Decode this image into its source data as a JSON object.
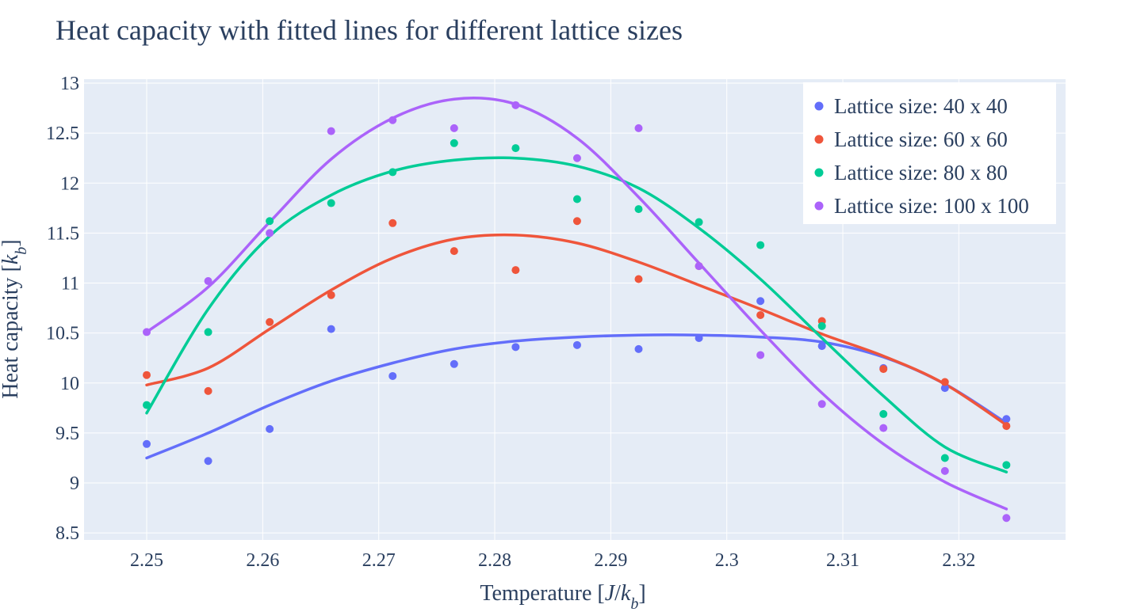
{
  "chart_data": {
    "type": "scatter",
    "title": "Heat capacity with fitted lines for different lattice sizes",
    "xlabel": "Temperature [J/k_b]",
    "ylabel": "Heat capacity [k_b]",
    "x_ticks": [
      "2.25",
      "2.26",
      "2.27",
      "2.28",
      "2.29",
      "2.3",
      "2.31",
      "2.32"
    ],
    "y_ticks": [
      "8.5",
      "9",
      "9.5",
      "10",
      "10.5",
      "11",
      "11.5",
      "12",
      "12.5",
      "13"
    ],
    "xlim": [
      2.2446,
      2.3292
    ],
    "ylim": [
      8.43,
      13.04
    ],
    "grid": true,
    "legend_position": "top-right",
    "x": [
      2.25,
      2.2553,
      2.2606,
      2.2659,
      2.2712,
      2.2765,
      2.2818,
      2.2871,
      2.2924,
      2.2976,
      2.3029,
      2.3082,
      2.3135,
      2.3188,
      2.3241
    ],
    "series": [
      {
        "name": "Lattice size: 40 x 40",
        "color": "#636efa",
        "values": [
          9.39,
          9.22,
          9.54,
          10.54,
          10.07,
          10.19,
          10.36,
          10.38,
          10.34,
          10.45,
          10.82,
          10.37,
          10.15,
          9.95,
          9.64
        ],
        "fit": [
          9.25,
          9.5,
          9.78,
          10.02,
          10.2,
          10.34,
          10.42,
          10.46,
          10.48,
          10.48,
          10.46,
          10.41,
          10.26,
          9.99,
          9.6
        ]
      },
      {
        "name": "Lattice size: 60 x 60",
        "color": "#ef553b",
        "values": [
          10.08,
          9.92,
          10.61,
          10.88,
          11.6,
          11.32,
          11.13,
          11.62,
          11.04,
          11.17,
          10.68,
          10.62,
          10.14,
          10.01,
          9.57
        ],
        "fit": [
          9.98,
          10.15,
          10.54,
          10.93,
          11.25,
          11.44,
          11.48,
          11.4,
          11.21,
          10.98,
          10.74,
          10.49,
          10.27,
          9.99,
          9.58
        ]
      },
      {
        "name": "Lattice size: 80 x 80",
        "color": "#00cc96",
        "values": [
          9.78,
          10.51,
          11.62,
          11.8,
          12.11,
          12.4,
          12.35,
          11.84,
          11.74,
          11.61,
          11.38,
          10.57,
          9.69,
          9.25,
          9.18
        ],
        "fit": [
          9.7,
          10.74,
          11.47,
          11.88,
          12.12,
          12.23,
          12.25,
          12.17,
          11.95,
          11.55,
          11.04,
          10.45,
          9.87,
          9.36,
          9.11
        ]
      },
      {
        "name": "Lattice size: 100 x 100",
        "color": "#ab63fa",
        "values": [
          10.51,
          11.02,
          11.5,
          12.52,
          12.63,
          12.55,
          12.78,
          12.25,
          12.55,
          11.17,
          10.28,
          9.79,
          9.55,
          9.12,
          8.65
        ],
        "fit": [
          10.51,
          10.96,
          11.61,
          12.24,
          12.65,
          12.84,
          12.79,
          12.45,
          11.86,
          11.2,
          10.53,
          9.9,
          9.39,
          9.01,
          8.74
        ]
      }
    ]
  }
}
